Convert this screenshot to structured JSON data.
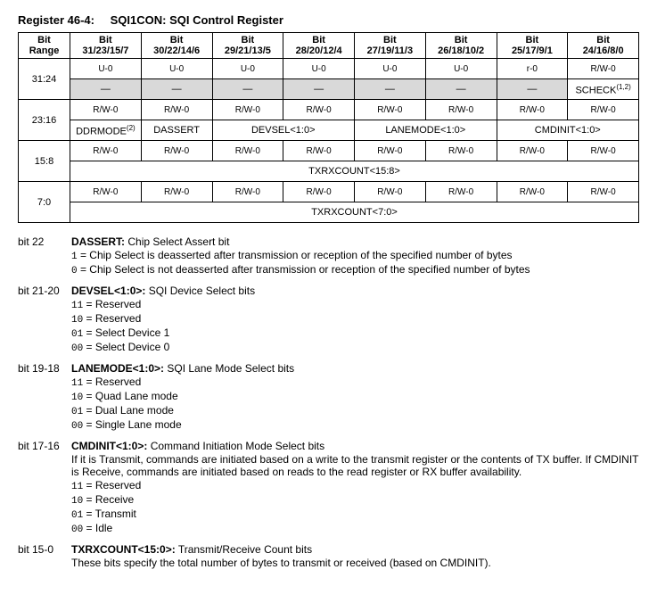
{
  "register_title": {
    "prefix": "Register 46-4:",
    "name": "SQI1CON: SQI Control Register"
  },
  "table": {
    "headers": {
      "range": "Bit Range",
      "cols": [
        "Bit 31/23/15/7",
        "Bit 30/22/14/6",
        "Bit 29/21/13/5",
        "Bit 28/20/12/4",
        "Bit 27/19/11/3",
        "Bit 26/18/10/2",
        "Bit 25/17/9/1",
        "Bit 24/16/8/0"
      ]
    },
    "rows": [
      {
        "range": "31:24",
        "attrs": [
          "U-0",
          "U-0",
          "U-0",
          "U-0",
          "U-0",
          "U-0",
          "r-0",
          "R/W-0"
        ],
        "names": [
          "—",
          "—",
          "—",
          "—",
          "—",
          "—",
          "—",
          "SCHECK(1,2)"
        ],
        "name_shade": [
          true,
          true,
          true,
          true,
          true,
          true,
          true,
          false
        ],
        "spans": [
          1,
          1,
          1,
          1,
          1,
          1,
          1,
          1
        ]
      },
      {
        "range": "23:16",
        "attrs": [
          "R/W-0",
          "R/W-0",
          "R/W-0",
          "R/W-0",
          "R/W-0",
          "R/W-0",
          "R/W-0",
          "R/W-0"
        ],
        "names": [
          "DDRMODE(2)",
          "DASSERT",
          "DEVSEL<1:0>",
          "LANEMODE<1:0>",
          "CMDINIT<1:0>"
        ],
        "spans": [
          1,
          1,
          2,
          2,
          2
        ]
      },
      {
        "range": "15:8",
        "attrs": [
          "R/W-0",
          "R/W-0",
          "R/W-0",
          "R/W-0",
          "R/W-0",
          "R/W-0",
          "R/W-0",
          "R/W-0"
        ],
        "names": [
          "TXRXCOUNT<15:8>"
        ],
        "spans": [
          8
        ]
      },
      {
        "range": "7:0",
        "attrs": [
          "R/W-0",
          "R/W-0",
          "R/W-0",
          "R/W-0",
          "R/W-0",
          "R/W-0",
          "R/W-0",
          "R/W-0"
        ],
        "names": [
          "TXRXCOUNT<7:0>"
        ],
        "spans": [
          8
        ]
      }
    ]
  },
  "descriptions": [
    {
      "label": "bit 22",
      "title_name": "DASSERT:",
      "title_rest": " Chip Select Assert bit",
      "lines": [
        {
          "code": "1",
          "text": " = Chip Select is deasserted after transmission or reception of the specified number of bytes"
        },
        {
          "code": "0",
          "text": " = Chip Select is not deasserted after transmission or reception of the specified number of bytes"
        }
      ]
    },
    {
      "label": "bit 21-20",
      "title_name": "DEVSEL<1:0>:",
      "title_rest": " SQI Device Select bits",
      "lines": [
        {
          "code": "11",
          "text": " = Reserved"
        },
        {
          "code": "10",
          "text": " = Reserved"
        },
        {
          "code": "01",
          "text": " = Select Device 1"
        },
        {
          "code": "00",
          "text": " = Select Device 0"
        }
      ]
    },
    {
      "label": "bit 19-18",
      "title_name": "LANEMODE<1:0>:",
      "title_rest": " SQI Lane Mode Select bits",
      "lines": [
        {
          "code": "11",
          "text": " = Reserved"
        },
        {
          "code": "10",
          "text": " = Quad Lane mode"
        },
        {
          "code": "01",
          "text": " = Dual Lane mode"
        },
        {
          "code": "00",
          "text": " = Single Lane mode"
        }
      ]
    },
    {
      "label": "bit 17-16",
      "title_name": "CMDINIT<1:0>:",
      "title_rest": " Command Initiation Mode Select bits",
      "pretext": "If it is Transmit, commands are initiated based on a write to the transmit register or the contents of TX buffer. If CMDINIT is Receive, commands are initiated based on reads to the read register or RX buffer availability.",
      "lines": [
        {
          "code": "11",
          "text": " = Reserved"
        },
        {
          "code": "10",
          "text": " = Receive"
        },
        {
          "code": "01",
          "text": " = Transmit"
        },
        {
          "code": "00",
          "text": " = Idle"
        }
      ]
    },
    {
      "label": "bit 15-0",
      "title_name": "TXRXCOUNT<15:0>:",
      "title_rest": " Transmit/Receive Count bits",
      "posttext": "These bits specify the total number of bytes to transmit or received (based on CMDINIT)."
    }
  ]
}
